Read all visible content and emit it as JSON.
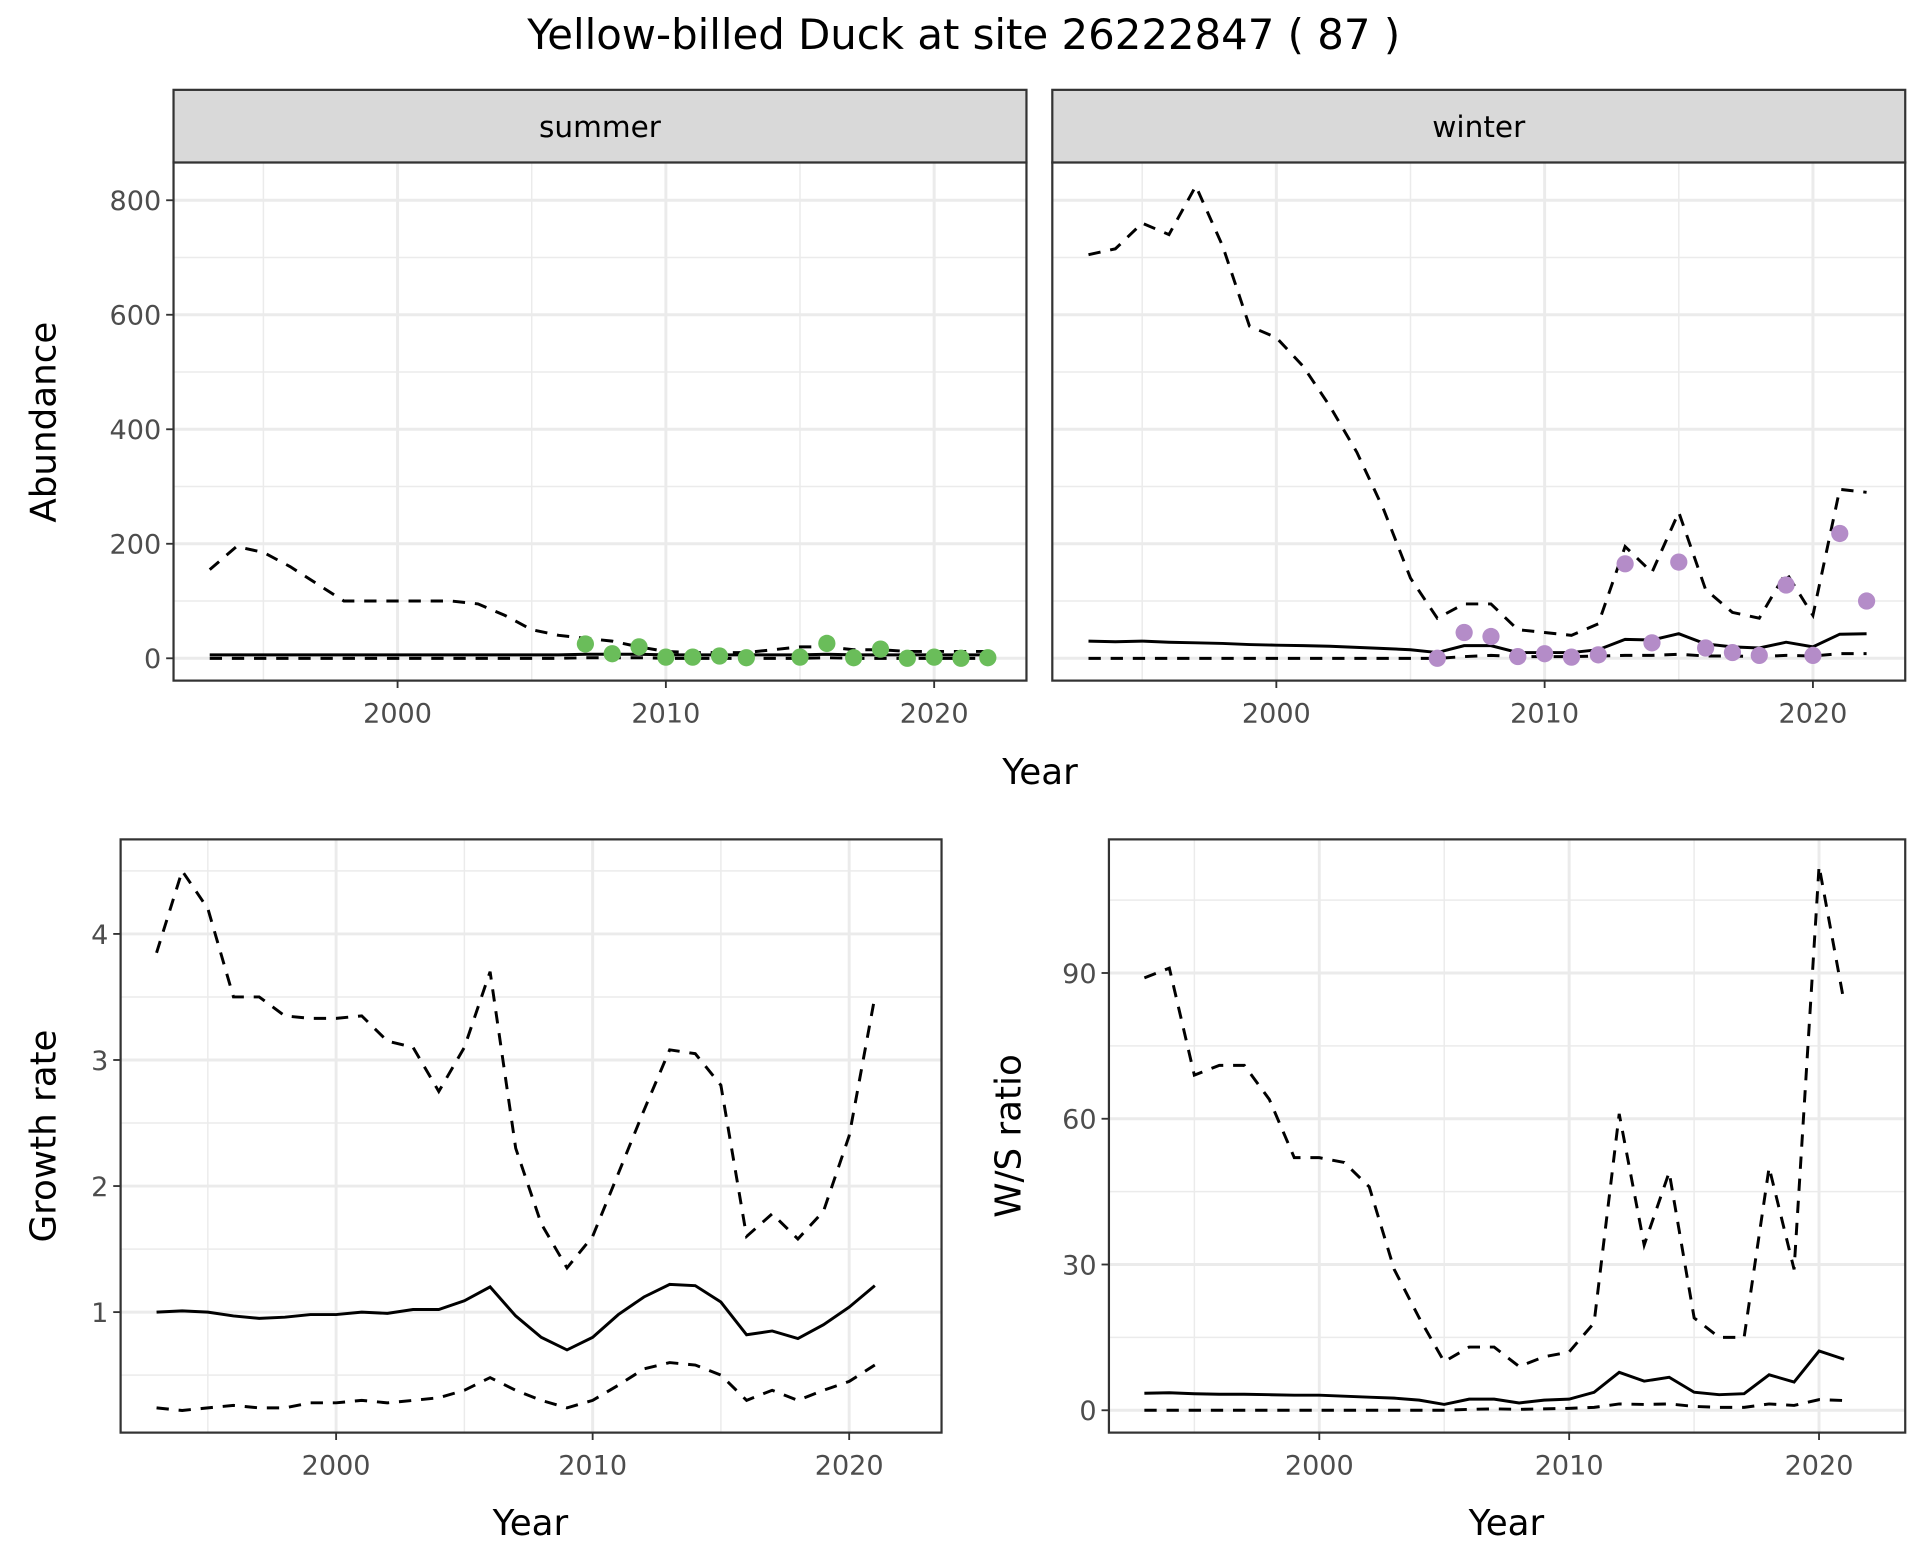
{
  "title": "Yellow-billed Duck at site 26222847 ( 87 )",
  "colors": {
    "summer_points": "#6abd5a",
    "winter_points": "#b48cc8",
    "lines": "#000000",
    "strip": "#d9d9d9",
    "grid": "#ebebeb"
  },
  "chart_data": [
    {
      "type": "line",
      "panel": "summer",
      "strip_label": "summer",
      "xlabel": "Year",
      "ylabel": "Abundance",
      "xlim": [
        1991.65,
        2023.44
      ],
      "ylim": [
        -39,
        866
      ],
      "xticks": [
        2000,
        2010,
        2020
      ],
      "yticks": [
        0,
        200,
        400,
        600,
        800
      ],
      "grid": true,
      "x": [
        1993,
        1994,
        1995,
        1996,
        1997,
        1998,
        1999,
        2000,
        2001,
        2002,
        2003,
        2004,
        2005,
        2006,
        2007,
        2008,
        2009,
        2010,
        2011,
        2012,
        2013,
        2014,
        2015,
        2016,
        2017,
        2018,
        2019,
        2020,
        2021,
        2022
      ],
      "series": [
        {
          "style": "dashed",
          "values": [
            155,
            195,
            185,
            160,
            130,
            100,
            100,
            100,
            100,
            100,
            95,
            75,
            50,
            40,
            35,
            30,
            20,
            12,
            10,
            10,
            10,
            15,
            20,
            20,
            15,
            15,
            12,
            12,
            12,
            12
          ]
        },
        {
          "style": "solid",
          "values": [
            6,
            6,
            6,
            6,
            6,
            6,
            6,
            6,
            6,
            6,
            6,
            6,
            6,
            6,
            7,
            7,
            7,
            6,
            6,
            6,
            6,
            6,
            6,
            7,
            6,
            6,
            6,
            6,
            6,
            6
          ]
        },
        {
          "style": "dashed",
          "values": [
            0,
            0,
            0,
            0,
            0,
            0,
            0,
            0,
            0,
            0,
            0,
            0,
            0,
            0,
            1,
            1,
            1,
            0,
            0,
            0,
            0,
            0,
            0,
            1,
            0,
            0,
            0,
            0,
            0,
            0
          ]
        }
      ],
      "points": {
        "x": [
          2007,
          2008,
          2009,
          2010,
          2011,
          2012,
          2013,
          2015,
          2016,
          2017,
          2018,
          2019,
          2020,
          2021,
          2022
        ],
        "y": [
          25,
          8,
          20,
          2,
          2,
          4,
          1,
          2,
          26,
          1,
          16,
          0,
          2,
          0,
          1
        ]
      }
    },
    {
      "type": "line",
      "panel": "winter",
      "strip_label": "winter",
      "xlabel": "Year",
      "ylabel": "Abundance",
      "xlim": [
        1991.65,
        2023.44
      ],
      "ylim": [
        -39,
        866
      ],
      "xticks": [
        2000,
        2010,
        2020
      ],
      "yticks": [
        0,
        200,
        400,
        600,
        800
      ],
      "grid": true,
      "x": [
        1993,
        1994,
        1995,
        1996,
        1997,
        1998,
        1999,
        2000,
        2001,
        2002,
        2003,
        2004,
        2005,
        2006,
        2007,
        2008,
        2009,
        2010,
        2011,
        2012,
        2013,
        2014,
        2015,
        2016,
        2017,
        2018,
        2019,
        2020,
        2021,
        2022
      ],
      "series": [
        {
          "style": "dashed",
          "values": [
            705,
            715,
            760,
            740,
            825,
            720,
            580,
            560,
            510,
            440,
            360,
            260,
            140,
            70,
            95,
            95,
            50,
            45,
            40,
            60,
            195,
            150,
            255,
            120,
            80,
            70,
            150,
            75,
            295,
            290
          ]
        },
        {
          "style": "solid",
          "values": [
            30,
            29,
            30,
            28,
            27,
            26,
            24,
            23,
            22,
            21,
            19,
            17,
            15,
            10,
            22,
            22,
            10,
            10,
            10,
            15,
            33,
            32,
            43,
            25,
            20,
            18,
            28,
            20,
            42,
            43
          ]
        },
        {
          "style": "dashed",
          "values": [
            0,
            0,
            0,
            0,
            0,
            0,
            0,
            0,
            0,
            0,
            0,
            0,
            0,
            0,
            3,
            5,
            3,
            3,
            3,
            4,
            5,
            5,
            7,
            4,
            4,
            3,
            5,
            4,
            8,
            8
          ]
        }
      ],
      "points": {
        "x": [
          2006,
          2007,
          2008,
          2009,
          2010,
          2011,
          2012,
          2013,
          2014,
          2015,
          2016,
          2017,
          2018,
          2019,
          2020,
          2021,
          2022
        ],
        "y": [
          0,
          45,
          38,
          3,
          8,
          2,
          6,
          165,
          27,
          168,
          18,
          10,
          5,
          128,
          5,
          218,
          100
        ]
      }
    },
    {
      "type": "line",
      "panel": "growth",
      "xlabel": "Year",
      "ylabel": "Growth rate",
      "xlim": [
        1991.6,
        2023.6
      ],
      "ylim": [
        0.044,
        4.75
      ],
      "xticks": [
        2000,
        2010,
        2020
      ],
      "yticks": [
        1,
        2,
        3,
        4
      ],
      "grid": true,
      "x": [
        1993,
        1994,
        1995,
        1996,
        1997,
        1998,
        1999,
        2000,
        2001,
        2002,
        2003,
        2004,
        2005,
        2006,
        2007,
        2008,
        2009,
        2010,
        2011,
        2012,
        2013,
        2014,
        2015,
        2016,
        2017,
        2018,
        2019,
        2020,
        2021
      ],
      "series": [
        {
          "style": "dashed",
          "values": [
            3.85,
            4.5,
            4.2,
            3.5,
            3.5,
            3.35,
            3.33,
            3.33,
            3.35,
            3.15,
            3.1,
            2.75,
            3.1,
            3.7,
            2.3,
            1.7,
            1.35,
            1.6,
            2.1,
            2.6,
            3.08,
            3.05,
            2.8,
            1.6,
            1.78,
            1.58,
            1.8,
            2.4,
            3.5
          ]
        },
        {
          "style": "solid",
          "values": [
            1.0,
            1.01,
            1.0,
            0.97,
            0.95,
            0.96,
            0.98,
            0.98,
            1.0,
            0.99,
            1.02,
            1.02,
            1.09,
            1.2,
            0.97,
            0.8,
            0.7,
            0.8,
            0.98,
            1.12,
            1.22,
            1.21,
            1.08,
            0.82,
            0.85,
            0.79,
            0.9,
            1.04,
            1.21
          ]
        },
        {
          "style": "dashed",
          "values": [
            0.24,
            0.22,
            0.24,
            0.26,
            0.24,
            0.24,
            0.28,
            0.28,
            0.3,
            0.28,
            0.3,
            0.32,
            0.38,
            0.48,
            0.38,
            0.3,
            0.24,
            0.3,
            0.42,
            0.55,
            0.6,
            0.58,
            0.5,
            0.3,
            0.38,
            0.3,
            0.38,
            0.45,
            0.58
          ]
        }
      ]
    },
    {
      "type": "line",
      "panel": "ratio",
      "xlabel": "Year",
      "ylabel": "W/S ratio",
      "xlim": [
        1991.58,
        2023.45
      ],
      "ylim": [
        -4.6,
        117.5
      ],
      "xticks": [
        2000,
        2010,
        2020
      ],
      "yticks": [
        0,
        30,
        60,
        90
      ],
      "grid": true,
      "x": [
        1993,
        1994,
        1995,
        1996,
        1997,
        1998,
        1999,
        2000,
        2001,
        2002,
        2003,
        2004,
        2005,
        2006,
        2007,
        2008,
        2009,
        2010,
        2011,
        2012,
        2013,
        2014,
        2015,
        2016,
        2017,
        2018,
        2019,
        2020,
        2021
      ],
      "series": [
        {
          "style": "dashed",
          "values": [
            89,
            91,
            69,
            71,
            71,
            64,
            52,
            52,
            51,
            46,
            29,
            19,
            10,
            13,
            13,
            9,
            11,
            12,
            18,
            61,
            34,
            49,
            19,
            15,
            15,
            50,
            29,
            112,
            84
          ]
        },
        {
          "style": "solid",
          "values": [
            3.5,
            3.6,
            3.4,
            3.3,
            3.3,
            3.2,
            3.1,
            3.1,
            2.9,
            2.7,
            2.5,
            2.1,
            1.2,
            2.3,
            2.3,
            1.5,
            2.1,
            2.3,
            3.7,
            7.8,
            6,
            6.8,
            3.7,
            3.2,
            3.4,
            7.3,
            5.8,
            12.2,
            10.5
          ]
        },
        {
          "style": "dashed",
          "values": [
            0,
            0,
            0,
            0,
            0,
            0,
            0,
            0,
            0,
            0,
            0,
            0,
            0,
            0.2,
            0.3,
            0.2,
            0.3,
            0.4,
            0.6,
            1.3,
            1.2,
            1.3,
            0.8,
            0.6,
            0.6,
            1.3,
            1.0,
            2.2,
            2.0
          ]
        }
      ]
    }
  ]
}
